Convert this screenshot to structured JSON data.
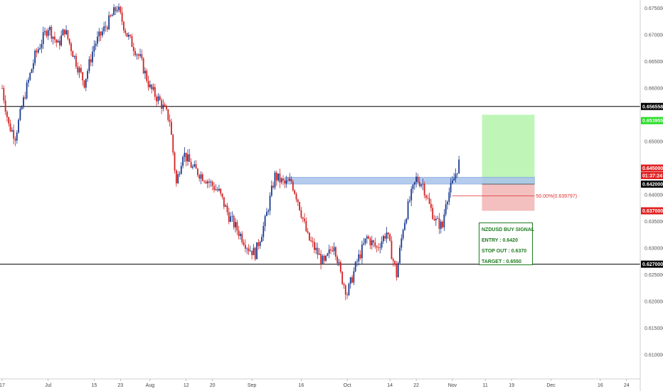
{
  "chart_data": {
    "type": "candlestick",
    "symbol": "NZDUSD",
    "ylim": [
      0.6055,
      0.6765
    ],
    "y_ticks": [
      0.675,
      0.67,
      0.665,
      0.66,
      0.65,
      0.645,
      0.64,
      0.635,
      0.63,
      0.625,
      0.62,
      0.615,
      0.61
    ],
    "y_tick_labels": [
      "0.675000",
      "0.670000",
      "0.665000",
      "0.660000",
      "0.650000",
      "0.645000",
      "0.640000",
      "0.635000",
      "0.630000",
      "0.625000",
      "0.620000",
      "0.615000",
      "0.610000"
    ],
    "x_ticks": [
      {
        "label": "17",
        "day": 0
      },
      {
        "label": "Jul",
        "day": 14
      },
      {
        "label": "15",
        "day": 28
      },
      {
        "label": "23",
        "day": 36
      },
      {
        "label": "Aug",
        "day": 45
      },
      {
        "label": "12",
        "day": 56
      },
      {
        "label": "20",
        "day": 64
      },
      {
        "label": "Sep",
        "day": 76
      },
      {
        "label": "16",
        "day": 91
      },
      {
        "label": "Oct",
        "day": 105
      },
      {
        "label": "14",
        "day": 118
      },
      {
        "label": "22",
        "day": 126
      },
      {
        "label": "Nov",
        "day": 137
      },
      {
        "label": "11",
        "day": 147
      },
      {
        "label": "19",
        "day": 155
      },
      {
        "label": "Dec",
        "day": 167
      },
      {
        "label": "16",
        "day": 182
      },
      {
        "label": "24",
        "day": 190
      }
    ],
    "key_points": [
      {
        "day": 0,
        "price": 0.66
      },
      {
        "day": 2,
        "price": 0.653
      },
      {
        "day": 4,
        "price": 0.651
      },
      {
        "day": 7,
        "price": 0.659
      },
      {
        "day": 10,
        "price": 0.666
      },
      {
        "day": 14,
        "price": 0.6715
      },
      {
        "day": 17,
        "price": 0.668
      },
      {
        "day": 19,
        "price": 0.671
      },
      {
        "day": 23,
        "price": 0.664
      },
      {
        "day": 25,
        "price": 0.661
      },
      {
        "day": 28,
        "price": 0.668
      },
      {
        "day": 32,
        "price": 0.672
      },
      {
        "day": 35,
        "price": 0.6752
      },
      {
        "day": 38,
        "price": 0.67
      },
      {
        "day": 42,
        "price": 0.6655
      },
      {
        "day": 45,
        "price": 0.66
      },
      {
        "day": 48,
        "price": 0.6575
      },
      {
        "day": 51,
        "price": 0.654
      },
      {
        "day": 53,
        "price": 0.642
      },
      {
        "day": 55,
        "price": 0.648
      },
      {
        "day": 58,
        "price": 0.645
      },
      {
        "day": 62,
        "price": 0.643
      },
      {
        "day": 66,
        "price": 0.6405
      },
      {
        "day": 69,
        "price": 0.636
      },
      {
        "day": 72,
        "price": 0.633
      },
      {
        "day": 75,
        "price": 0.63
      },
      {
        "day": 77,
        "price": 0.629
      },
      {
        "day": 80,
        "price": 0.635
      },
      {
        "day": 83,
        "price": 0.6435
      },
      {
        "day": 86,
        "price": 0.642
      },
      {
        "day": 88,
        "price": 0.6425
      },
      {
        "day": 90,
        "price": 0.639
      },
      {
        "day": 93,
        "price": 0.632
      },
      {
        "day": 96,
        "price": 0.629
      },
      {
        "day": 98,
        "price": 0.627
      },
      {
        "day": 101,
        "price": 0.631
      },
      {
        "day": 103,
        "price": 0.625
      },
      {
        "day": 105,
        "price": 0.6215
      },
      {
        "day": 108,
        "price": 0.6275
      },
      {
        "day": 111,
        "price": 0.632
      },
      {
        "day": 114,
        "price": 0.63
      },
      {
        "day": 117,
        "price": 0.633
      },
      {
        "day": 120,
        "price": 0.625
      },
      {
        "day": 122,
        "price": 0.634
      },
      {
        "day": 124,
        "price": 0.639
      },
      {
        "day": 126,
        "price": 0.643
      },
      {
        "day": 128,
        "price": 0.642
      },
      {
        "day": 130,
        "price": 0.638
      },
      {
        "day": 132,
        "price": 0.635
      },
      {
        "day": 134,
        "price": 0.634
      },
      {
        "day": 135,
        "price": 0.639
      },
      {
        "day": 137,
        "price": 0.642
      },
      {
        "day": 139,
        "price": 0.646
      }
    ],
    "horizontal_lines": [
      {
        "price": 0.65655,
        "label": "0.656558"
      },
      {
        "price": 0.627,
        "label": "0.627000"
      }
    ],
    "price_tags": [
      {
        "label": "0.656558",
        "price": 0.65655,
        "color": "#000000"
      },
      {
        "label": "0.653955",
        "price": 0.6539,
        "color": "#22dd22"
      },
      {
        "label": "0.645000",
        "price": 0.645,
        "color": "#e02020"
      },
      {
        "label": "01:37:24",
        "price": 0.6436,
        "color": "#e02020"
      },
      {
        "label": "0.642000",
        "price": 0.642,
        "color": "#000000"
      },
      {
        "label": "0.637000",
        "price": 0.637,
        "color": "#e02020"
      },
      {
        "label": "0.627000",
        "price": 0.627,
        "color": "#000000"
      }
    ],
    "zone": {
      "day_start": 86,
      "day_end": 162,
      "price_low": 0.642,
      "price_high": 0.6433
    },
    "position": {
      "day_start": 146,
      "day_end": 162,
      "entry": 0.642,
      "stop": 0.637,
      "target": 0.655
    },
    "fib_line": {
      "label": "50.00%(0.639797)",
      "price": 0.6398,
      "day_start": 137,
      "day_end": 162
    }
  },
  "signal": {
    "title": "NZDUSD BUY SIGNAL",
    "entry": "ENTRY : 0.6420",
    "stop": "STOP OUT : 0.6370",
    "target": "TARGET : 0.6550"
  },
  "colors": {
    "candle_up": "#1a3a8f",
    "candle_down": "#d42020",
    "target_zone": "#b8f5b0",
    "stop_zone": "#f3b8b8",
    "entry_zone": "#a9c3ec",
    "signal_text": "#1e7b1e"
  }
}
